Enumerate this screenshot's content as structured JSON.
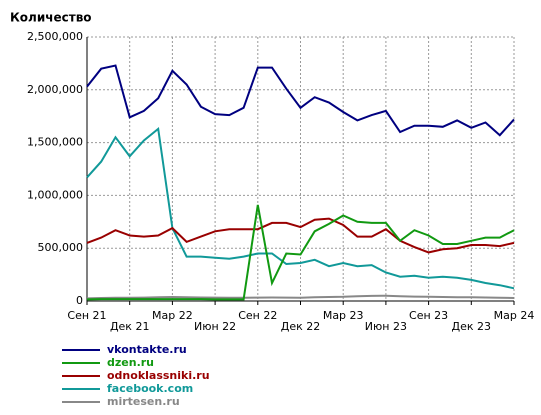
{
  "chart_data": {
    "type": "line",
    "title": "Количество",
    "categories": [
      "Сен 21",
      null,
      null,
      "Дек 21",
      null,
      null,
      "Мар 22",
      null,
      null,
      "Июн 22",
      null,
      null,
      "Сен 22",
      null,
      null,
      "Дек 22",
      null,
      null,
      "Мар 23",
      null,
      null,
      "Июн 23",
      null,
      null,
      "Сен 23",
      null,
      null,
      "Дек 23",
      null,
      null,
      "Мар 24"
    ],
    "series": [
      {
        "name": "vkontakte.ru",
        "color": "#000080",
        "values": [
          2030000,
          2200000,
          2230000,
          1740000,
          1800000,
          1920000,
          2180000,
          2050000,
          1840000,
          1770000,
          1760000,
          1830000,
          2210000,
          2210000,
          2010000,
          1830000,
          1930000,
          1880000,
          1790000,
          1710000,
          1760000,
          1800000,
          1600000,
          1660000,
          1660000,
          1650000,
          1710000,
          1640000,
          1690000,
          1570000,
          1720000
        ]
      },
      {
        "name": "dzen.ru",
        "color": "#119911",
        "values": [
          15000,
          18000,
          18000,
          18000,
          18000,
          18000,
          18000,
          18000,
          18000,
          15000,
          15000,
          15000,
          910000,
          170000,
          450000,
          440000,
          660000,
          730000,
          810000,
          750000,
          740000,
          740000,
          570000,
          670000,
          620000,
          540000,
          540000,
          570000,
          600000,
          600000,
          670000
        ]
      },
      {
        "name": "odnoklassniki.ru",
        "color": "#990000",
        "values": [
          550000,
          600000,
          670000,
          620000,
          610000,
          620000,
          690000,
          560000,
          610000,
          660000,
          680000,
          680000,
          680000,
          740000,
          740000,
          700000,
          770000,
          780000,
          720000,
          610000,
          610000,
          680000,
          570000,
          510000,
          460000,
          490000,
          500000,
          530000,
          530000,
          520000,
          550000
        ]
      },
      {
        "name": "facebook.com",
        "color": "#119999",
        "values": [
          1170000,
          1320000,
          1550000,
          1370000,
          1520000,
          1630000,
          690000,
          420000,
          420000,
          410000,
          400000,
          420000,
          450000,
          450000,
          350000,
          360000,
          390000,
          330000,
          360000,
          330000,
          340000,
          270000,
          230000,
          240000,
          220000,
          230000,
          220000,
          200000,
          170000,
          150000,
          120000
        ]
      },
      {
        "name": "mirtesen.ru",
        "color": "#888888",
        "values": [
          25000,
          28000,
          30000,
          30000,
          32000,
          35000,
          38000,
          35000,
          33000,
          32000,
          30000,
          30000,
          32000,
          33000,
          32000,
          30000,
          35000,
          38000,
          40000,
          45000,
          48000,
          50000,
          45000,
          42000,
          40000,
          38000,
          35000,
          35000,
          33000,
          30000,
          28000
        ]
      }
    ],
    "ylim": [
      0,
      2500000
    ],
    "yticks": [
      0,
      {
        "value": 500000,
        "label": "500,000"
      },
      {
        "value": 1000000,
        "label": "1,000,000"
      },
      {
        "value": 1500000,
        "label": "1,500,000"
      },
      {
        "value": 2000000,
        "label": "2,000,000"
      },
      {
        "value": 2500000,
        "label": "2,500,000"
      }
    ],
    "grid": true
  }
}
